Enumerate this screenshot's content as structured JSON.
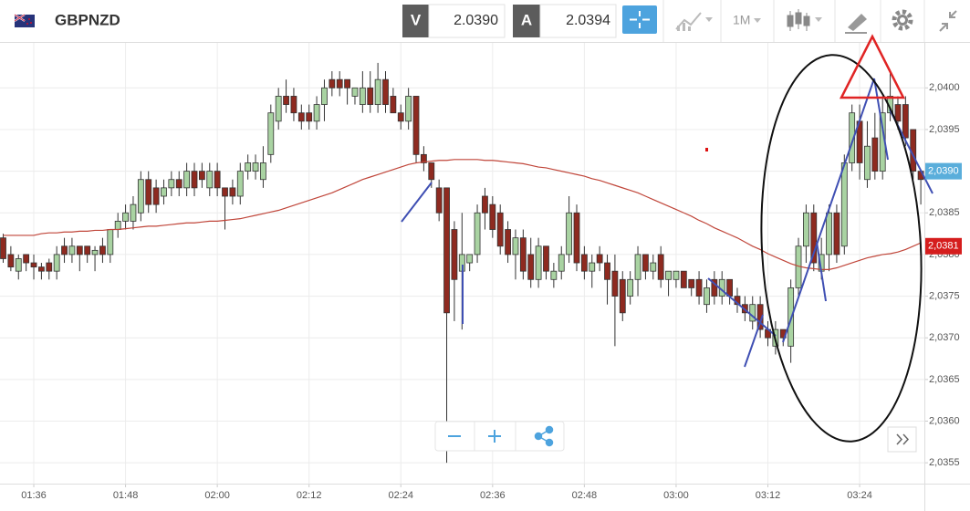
{
  "toolbar": {
    "symbol": "GBPNZD",
    "bid_label": "V",
    "bid": "2.0390",
    "ask_label": "A",
    "ask": "2.0394",
    "timeframe": "1M"
  },
  "chart_data": {
    "type": "candlestick",
    "categories": [
      null,
      null,
      null,
      null,
      "01:36",
      null,
      null,
      null,
      null,
      null,
      null,
      null,
      null,
      null,
      null,
      null,
      "01:48",
      null,
      null,
      null,
      null,
      null,
      null,
      null,
      null,
      null,
      null,
      null,
      "02:00",
      null,
      null,
      null,
      null,
      null,
      null,
      null,
      null,
      null,
      null,
      null,
      "02:12",
      null,
      null,
      null,
      null,
      null,
      null,
      null,
      null,
      null,
      null,
      null,
      "02:24",
      null,
      null,
      null,
      null,
      null,
      null,
      null,
      null,
      null,
      null,
      null,
      "02:36",
      null,
      null,
      null,
      null,
      null,
      null,
      null,
      null,
      null,
      null,
      null,
      "02:48",
      null,
      null,
      null,
      null,
      null,
      null,
      null,
      null,
      null,
      null,
      null,
      "03:00",
      null,
      null,
      null,
      null,
      null,
      null,
      null,
      null,
      null,
      null,
      null,
      "03:12",
      null,
      null,
      null,
      null,
      null,
      null,
      null,
      null,
      null,
      null,
      null,
      "03:24",
      null,
      null,
      null,
      null,
      null,
      null,
      null,
      null
    ],
    "ohlc": [
      [
        2.0382,
        2.03825,
        2.0379,
        2.03795
      ],
      [
        2.038,
        2.0381,
        2.0378,
        2.03785
      ],
      [
        2.0378,
        2.038,
        2.0377,
        2.03795
      ],
      [
        2.038,
        2.038,
        2.0378,
        2.0379
      ],
      [
        2.0379,
        2.038,
        2.0377,
        2.03785
      ],
      [
        2.03785,
        2.0379,
        2.0377,
        2.0378
      ],
      [
        2.0379,
        2.03795,
        2.0377,
        2.0378
      ],
      [
        2.0378,
        2.0381,
        2.0377,
        2.038
      ],
      [
        2.0381,
        2.0382,
        2.0379,
        2.038
      ],
      [
        2.038,
        2.0382,
        2.0379,
        2.0381
      ],
      [
        2.0381,
        2.0381,
        2.0378,
        2.038
      ],
      [
        2.0381,
        2.0381,
        2.0379,
        2.038
      ],
      [
        2.038,
        2.0381,
        2.0378,
        2.03805
      ],
      [
        2.0381,
        2.0382,
        2.0379,
        2.038
      ],
      [
        2.038,
        2.0383,
        2.0379,
        2.0383
      ],
      [
        2.0383,
        2.0385,
        2.0382,
        2.0384
      ],
      [
        2.0384,
        2.0386,
        2.0383,
        2.0385
      ],
      [
        2.0384,
        2.0387,
        2.0383,
        2.0386
      ],
      [
        2.0385,
        2.039,
        2.0384,
        2.0389
      ],
      [
        2.0389,
        2.039,
        2.0385,
        2.0386
      ],
      [
        2.0388,
        2.0389,
        2.0385,
        2.0386
      ],
      [
        2.0387,
        2.0389,
        2.0386,
        2.0388
      ],
      [
        2.0388,
        2.039,
        2.0387,
        2.0389
      ],
      [
        2.0389,
        2.039,
        2.0387,
        2.0388
      ],
      [
        2.0388,
        2.0391,
        2.0387,
        2.039
      ],
      [
        2.039,
        2.0391,
        2.0387,
        2.0388
      ],
      [
        2.039,
        2.0391,
        2.0388,
        2.0389
      ],
      [
        2.0388,
        2.0391,
        2.0387,
        2.039
      ],
      [
        2.039,
        2.0391,
        2.0387,
        2.0388
      ],
      [
        2.0388,
        2.0388,
        2.0383,
        2.0387
      ],
      [
        2.0388,
        2.0389,
        2.0386,
        2.0387
      ],
      [
        2.0387,
        2.0391,
        2.0386,
        2.039
      ],
      [
        2.039,
        2.0392,
        2.0389,
        2.0391
      ],
      [
        2.039,
        2.0392,
        2.0389,
        2.0391
      ],
      [
        2.0389,
        2.0393,
        2.0388,
        2.0391
      ],
      [
        2.0392,
        2.0398,
        2.0391,
        2.0397
      ],
      [
        2.0396,
        2.04,
        2.0395,
        2.0399
      ],
      [
        2.0399,
        2.0401,
        2.0397,
        2.0398
      ],
      [
        2.0399,
        2.04,
        2.0396,
        2.0397
      ],
      [
        2.0397,
        2.0398,
        2.0395,
        2.0396
      ],
      [
        2.0397,
        2.0398,
        2.0395,
        2.0396
      ],
      [
        2.0396,
        2.0399,
        2.0395,
        2.0398
      ],
      [
        2.0398,
        2.0401,
        2.0396,
        2.04
      ],
      [
        2.0401,
        2.0402,
        2.0399,
        2.04
      ],
      [
        2.0401,
        2.0402,
        2.0399,
        2.04
      ],
      [
        2.0401,
        2.0401,
        2.0398,
        2.04
      ],
      [
        2.0399,
        2.04,
        2.0398,
        2.04
      ],
      [
        2.0398,
        2.0402,
        2.0397,
        2.04
      ],
      [
        2.04,
        2.0402,
        2.0397,
        2.0398
      ],
      [
        2.0398,
        2.0403,
        2.0397,
        2.0401
      ],
      [
        2.0401,
        2.0402,
        2.0397,
        2.0398
      ],
      [
        2.0399,
        2.04,
        2.0397,
        2.0397
      ],
      [
        2.0397,
        2.0398,
        2.0395,
        2.0396
      ],
      [
        2.0396,
        2.04,
        2.0395,
        2.0399
      ],
      [
        2.0399,
        2.0399,
        2.0391,
        2.0392
      ],
      [
        2.0392,
        2.0393,
        2.039,
        2.0391
      ],
      [
        2.0391,
        2.0391,
        2.0388,
        2.0389
      ],
      [
        2.0388,
        2.0389,
        2.0384,
        2.0385
      ],
      [
        2.0388,
        2.0388,
        2.0355,
        2.0373
      ],
      [
        2.0383,
        2.0384,
        2.0372,
        2.0377
      ],
      [
        2.0378,
        2.0385,
        2.0371,
        2.038
      ],
      [
        2.0379,
        2.038,
        2.0378,
        2.038
      ],
      [
        2.038,
        2.0386,
        2.0379,
        2.0385
      ],
      [
        2.0387,
        2.0388,
        2.0383,
        2.0385
      ],
      [
        2.0386,
        2.0387,
        2.0382,
        2.0383
      ],
      [
        2.0385,
        2.0386,
        2.038,
        2.0381
      ],
      [
        2.0383,
        2.0384,
        2.0379,
        2.038
      ],
      [
        2.038,
        2.0383,
        2.0377,
        2.0382
      ],
      [
        2.0382,
        2.0383,
        2.0377,
        2.0378
      ],
      [
        2.038,
        2.0382,
        2.0376,
        2.0377
      ],
      [
        2.0377,
        2.0382,
        2.0376,
        2.0381
      ],
      [
        2.0381,
        2.0381,
        2.0377,
        2.0378
      ],
      [
        2.0377,
        2.0379,
        2.0376,
        2.0378
      ],
      [
        2.0378,
        2.0381,
        2.0377,
        2.038
      ],
      [
        2.038,
        2.0387,
        2.0379,
        2.0385
      ],
      [
        2.0385,
        2.0386,
        2.0378,
        2.0379
      ],
      [
        2.038,
        2.0381,
        2.0377,
        2.0378
      ],
      [
        2.0378,
        2.038,
        2.0376,
        2.0379
      ],
      [
        2.038,
        2.0381,
        2.0378,
        2.0379
      ],
      [
        2.0379,
        2.038,
        2.0374,
        2.0377
      ],
      [
        2.0378,
        2.038,
        2.0369,
        2.0375
      ],
      [
        2.0377,
        2.0378,
        2.0372,
        2.0373
      ],
      [
        2.0375,
        2.0378,
        2.0374,
        2.0377
      ],
      [
        2.0377,
        2.0381,
        2.0375,
        2.038
      ],
      [
        2.038,
        2.038,
        2.0377,
        2.0378
      ],
      [
        2.0378,
        2.038,
        2.0377,
        2.0379
      ],
      [
        2.038,
        2.0381,
        2.0376,
        2.0377
      ],
      [
        2.0377,
        2.0378,
        2.0375,
        2.0378
      ],
      [
        2.0377,
        2.0378,
        2.0376,
        2.0378
      ],
      [
        2.0378,
        2.0378,
        2.0376,
        2.0376
      ],
      [
        2.0377,
        2.0377,
        2.0375,
        2.0376
      ],
      [
        2.0377,
        2.0378,
        2.0374,
        2.0375
      ],
      [
        2.0374,
        2.0377,
        2.0373,
        2.0376
      ],
      [
        2.0377,
        2.0378,
        2.0374,
        2.0375
      ],
      [
        2.0375,
        2.0378,
        2.0374,
        2.0377
      ],
      [
        2.0377,
        2.0377,
        2.0374,
        2.0375
      ],
      [
        2.0375,
        2.0376,
        2.0373,
        2.0374
      ],
      [
        2.0374,
        2.0375,
        2.0372,
        2.0373
      ],
      [
        2.0372,
        2.0375,
        2.0371,
        2.0374
      ],
      [
        2.0374,
        2.0375,
        2.037,
        2.0371
      ],
      [
        2.0371,
        2.0372,
        2.0369,
        2.037
      ],
      [
        2.0369,
        2.0372,
        2.0368,
        2.0371
      ],
      [
        2.0371,
        2.0371,
        2.0369,
        2.037
      ],
      [
        2.0369,
        2.0377,
        2.0367,
        2.0376
      ],
      [
        2.0376,
        2.0382,
        2.0375,
        2.0381
      ],
      [
        2.0381,
        2.0386,
        2.0379,
        2.0385
      ],
      [
        2.0385,
        2.0386,
        2.0378,
        2.0379
      ],
      [
        2.0378,
        2.0382,
        2.0377,
        2.038
      ],
      [
        2.038,
        2.0386,
        2.0378,
        2.0385
      ],
      [
        2.0385,
        2.0386,
        2.0379,
        2.038
      ],
      [
        2.0381,
        2.0392,
        2.038,
        2.0391
      ],
      [
        2.0391,
        2.0398,
        2.039,
        2.0397
      ],
      [
        2.0396,
        2.0398,
        2.0389,
        2.0391
      ],
      [
        2.0389,
        2.0396,
        2.0388,
        2.0393
      ],
      [
        2.0394,
        2.0397,
        2.0389,
        2.039
      ],
      [
        2.039,
        2.0399,
        2.0389,
        2.0397
      ],
      [
        2.0397,
        2.0402,
        2.0396,
        2.0399
      ],
      [
        2.0398,
        2.0399,
        2.0395,
        2.0396
      ],
      [
        2.0398,
        2.0399,
        2.0393,
        2.0394
      ],
      [
        2.0395,
        2.0395,
        2.0389,
        2.039
      ],
      [
        2.039,
        2.039,
        2.0386,
        2.0389
      ]
    ],
    "up_color": "#a9d3a2",
    "down_color": "#8e2a20",
    "ma": {
      "color": "#c0463a",
      "values": [
        2.03823,
        2.03823,
        2.03823,
        2.03823,
        2.03823,
        2.03825,
        2.03826,
        2.03826,
        2.03827,
        2.03827,
        2.03828,
        2.03828,
        2.03829,
        2.03829,
        2.0383,
        2.0383,
        2.03831,
        2.03832,
        2.03833,
        2.03834,
        2.03834,
        2.03835,
        2.03836,
        2.03837,
        2.03838,
        2.03838,
        2.03839,
        2.0384,
        2.0384,
        2.03841,
        2.03842,
        2.03843,
        2.03845,
        2.03847,
        2.03849,
        2.03851,
        2.03853,
        2.03856,
        2.03859,
        2.03862,
        2.03865,
        2.03868,
        2.03871,
        2.03874,
        2.03878,
        2.03882,
        2.03886,
        2.0389,
        2.03893,
        2.03896,
        2.03899,
        2.03902,
        2.03905,
        2.03908,
        2.0391,
        2.03911,
        2.03912,
        2.03913,
        2.03913,
        2.03914,
        2.03914,
        2.03914,
        2.03914,
        2.03913,
        2.03913,
        2.03912,
        2.03911,
        2.0391,
        2.03909,
        2.03907,
        2.03905,
        2.03904,
        2.03902,
        2.039,
        2.03898,
        2.03896,
        2.03894,
        2.03891,
        2.03889,
        2.03886,
        2.03883,
        2.0388,
        2.03877,
        2.03874,
        2.0387,
        2.03866,
        2.03862,
        2.03858,
        2.03854,
        2.0385,
        2.03846,
        2.03841,
        2.03837,
        2.03832,
        2.03828,
        2.03824,
        2.0382,
        2.03815,
        2.0381,
        2.03806,
        2.03801,
        2.03797,
        2.03793,
        2.03789,
        2.03786,
        2.03784,
        2.03783,
        2.03782,
        2.03782,
        2.03784,
        2.03787,
        2.0379,
        2.03793,
        2.03796,
        2.03798,
        2.038,
        2.03801,
        2.03803,
        2.03806,
        2.0381,
        2.03814
      ]
    },
    "ylim": [
      2.03525,
      2.04054
    ],
    "yticks": [
      {
        "value": 2.0355,
        "label": "2,0355"
      },
      {
        "value": 2.036,
        "label": "2,0360"
      },
      {
        "value": 2.0365,
        "label": "2,0365"
      },
      {
        "value": 2.037,
        "label": "2,0370"
      },
      {
        "value": 2.0375,
        "label": "2,0375"
      },
      {
        "value": 2.038,
        "label": "2,0380"
      },
      {
        "value": 2.0385,
        "label": "2,0385"
      },
      {
        "value": 2.039,
        "label": "2,0390"
      },
      {
        "value": 2.0395,
        "label": "2,0395"
      },
      {
        "value": 2.04,
        "label": "2,0400"
      }
    ],
    "grid": true,
    "price_markers": [
      {
        "value": 2.039,
        "label": "2,0390",
        "color": "#5aaedb"
      },
      {
        "value": 2.0381,
        "label": "2,0381",
        "color": "#d51d1d"
      }
    ]
  }
}
